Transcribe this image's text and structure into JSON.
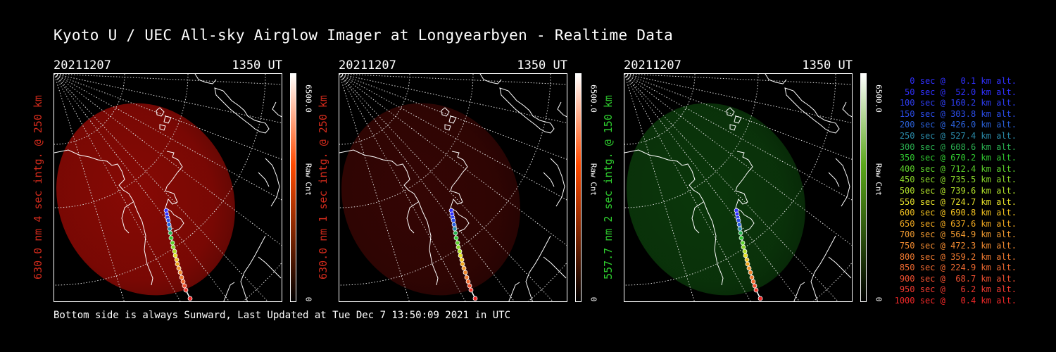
{
  "title": "Kyoto U / UEC All-sky Airglow Imager at Longyearbyen - Realtime Data",
  "footer": "Bottom side is always Sunward, Last Updated at Tue Dec  7 13:50:09 2021 in UTC",
  "panels": [
    {
      "date": "20211207",
      "time": "1350 UT",
      "ylabel": "630.0 nm 4 sec intg. @ 250 km",
      "label_color": "#d42b1c",
      "cbar_max": "6500.0",
      "cbar_min": "0",
      "cbar_unit": "Raw Cnt",
      "cbar_color": "#ff4a00",
      "glow_color": "#8e0a05",
      "glow_opacity": 0.85
    },
    {
      "date": "20211207",
      "time": "1350 UT",
      "ylabel": "630.0 nm 1 sec intg. @ 250 km",
      "label_color": "#d42b1c",
      "cbar_max": "6500.0",
      "cbar_min": "0",
      "cbar_unit": "Raw Cnt",
      "cbar_color": "#ff4a00",
      "glow_color": "#3a0604",
      "glow_opacity": 0.8
    },
    {
      "date": "20211207",
      "time": "1350 UT",
      "ylabel": "557.7 nm 2 sec intg. @ 150 km",
      "label_color": "#2ecc2e",
      "cbar_max": "6500.0",
      "cbar_min": "0",
      "cbar_unit": "Raw Cnt",
      "cbar_color": "#5aa81a",
      "glow_color": "#0b3a0b",
      "glow_opacity": 0.85
    }
  ],
  "legend": [
    {
      "text": "0 sec @   0.1 km alt.",
      "color": "#3030ff"
    },
    {
      "text": "50 sec @  52.0 km alt.",
      "color": "#3030ff"
    },
    {
      "text": "100 sec @ 160.2 km alt.",
      "color": "#2d3df0"
    },
    {
      "text": "150 sec @ 303.8 km alt.",
      "color": "#2a4ce8"
    },
    {
      "text": "200 sec @ 426.0 km alt.",
      "color": "#2a60d8"
    },
    {
      "text": "250 sec @ 527.4 km alt.",
      "color": "#2a8aa8"
    },
    {
      "text": "300 sec @ 608.6 km alt.",
      "color": "#2ab050"
    },
    {
      "text": "350 sec @ 670.2 km alt.",
      "color": "#30c830"
    },
    {
      "text": "400 sec @ 712.4 km alt.",
      "color": "#5cd02a"
    },
    {
      "text": "450 sec @ 735.5 km alt.",
      "color": "#8ad82a"
    },
    {
      "text": "500 sec @ 739.6 km alt.",
      "color": "#b0e02a"
    },
    {
      "text": "550 sec @ 724.7 km alt.",
      "color": "#e6e02a"
    },
    {
      "text": "600 sec @ 690.8 km alt.",
      "color": "#f0c020"
    },
    {
      "text": "650 sec @ 637.6 km alt.",
      "color": "#f0a820"
    },
    {
      "text": "700 sec @ 564.9 km alt.",
      "color": "#f09a30"
    },
    {
      "text": "750 sec @ 472.3 km alt.",
      "color": "#f08a30"
    },
    {
      "text": "800 sec @ 359.2 km alt.",
      "color": "#f07a30"
    },
    {
      "text": "850 sec @ 224.9 km alt.",
      "color": "#f06a30"
    },
    {
      "text": "900 sec @  68.7 km alt.",
      "color": "#f05030"
    },
    {
      "text": "950 sec @   6.2 km alt.",
      "color": "#f03a30"
    },
    {
      "text": "1000 sec @   0.4 km alt.",
      "color": "#f02828"
    }
  ]
}
